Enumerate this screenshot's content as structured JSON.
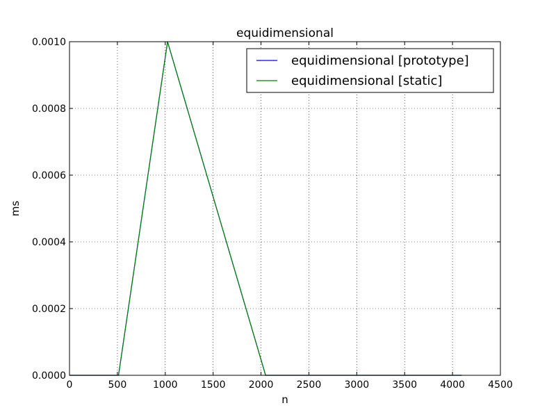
{
  "chart_data": {
    "type": "line",
    "title": "equidimensional",
    "xlabel": "n",
    "ylabel": "ms",
    "xlim": [
      0,
      4500
    ],
    "ylim": [
      0,
      0.001
    ],
    "grid": true,
    "legend_position": "top-right",
    "x_ticks": [
      0,
      500,
      1000,
      1500,
      2000,
      2500,
      3000,
      3500,
      4000,
      4500
    ],
    "x_tick_labels": [
      "0",
      "500",
      "1000",
      "1500",
      "2000",
      "2500",
      "3000",
      "3500",
      "4000",
      "4500"
    ],
    "y_ticks": [
      0,
      0.0002,
      0.0004,
      0.0006,
      0.0008,
      0.001
    ],
    "y_tick_labels": [
      "0.0000",
      "0.0002",
      "0.0004",
      "0.0006",
      "0.0008",
      "0.0010"
    ],
    "series": [
      {
        "name": "equidimensional [prototype]",
        "color": "#0000ff",
        "x": [
          0,
          512,
          1024,
          2048,
          4096
        ],
        "y": [
          0,
          0,
          0.001,
          0,
          0
        ]
      },
      {
        "name": "equidimensional [static]",
        "color": "#008000",
        "x": [
          0,
          512,
          1024,
          2048,
          4096
        ],
        "y": [
          0,
          0,
          0.001,
          0,
          0
        ]
      }
    ]
  }
}
